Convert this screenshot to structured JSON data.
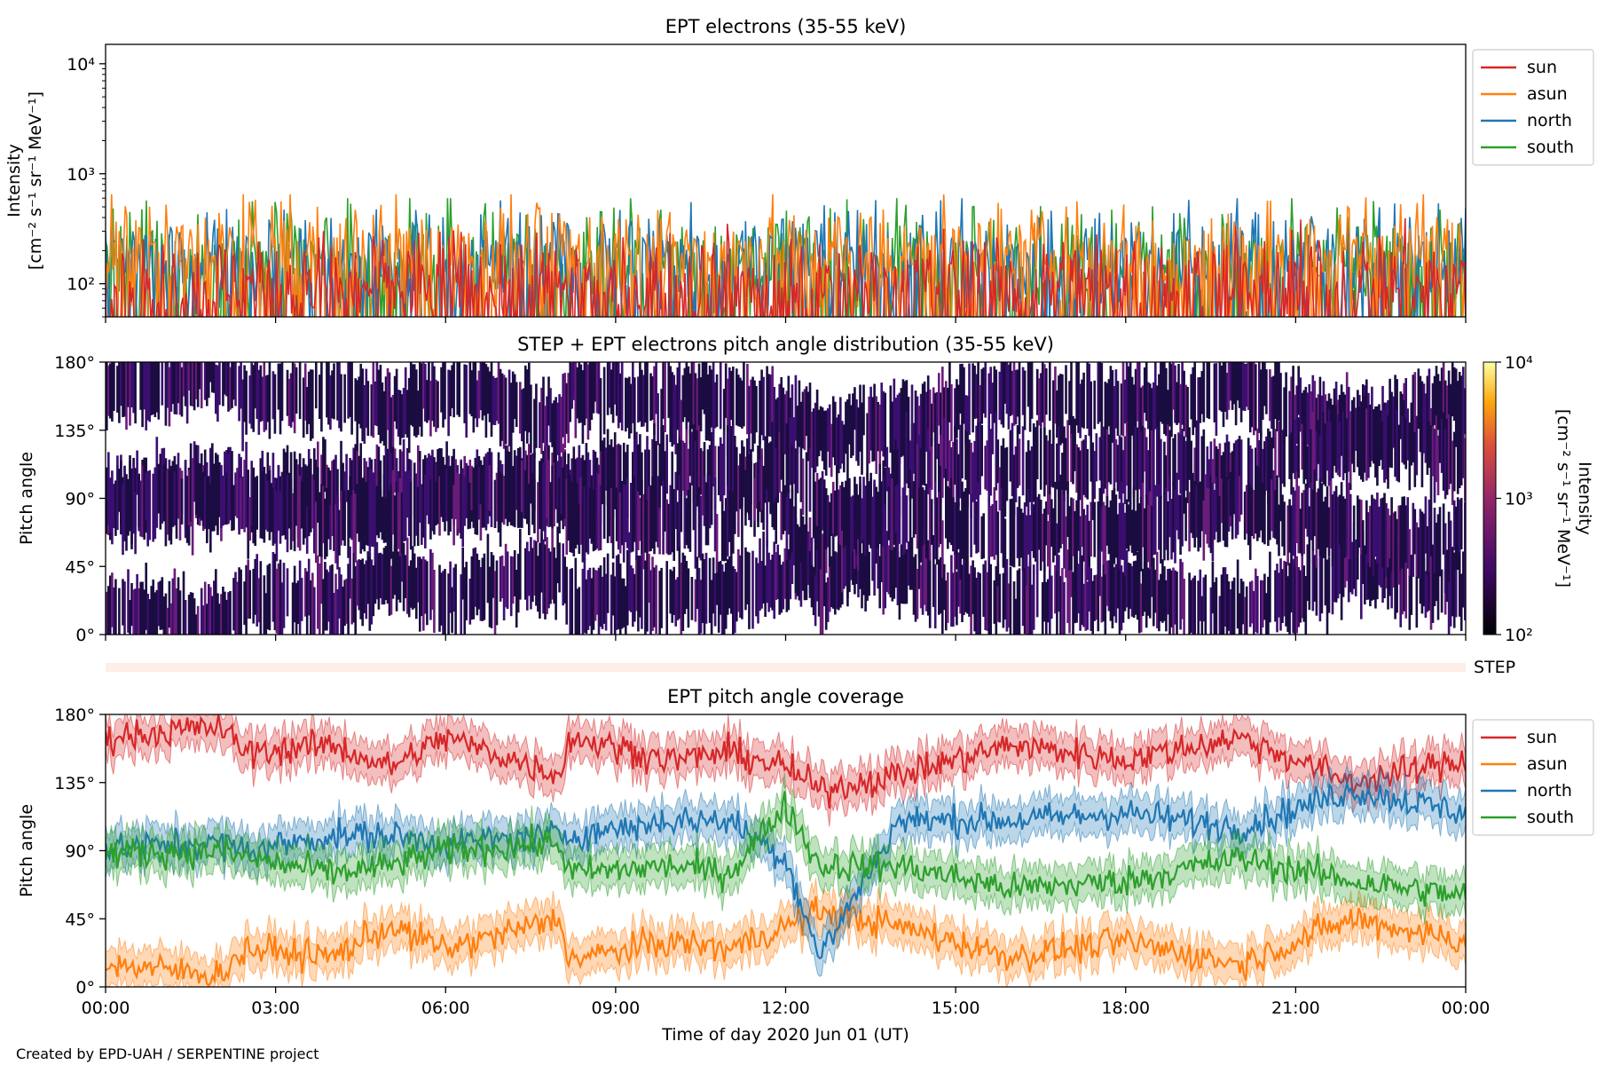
{
  "footer": "Created by EPD-UAH / SERPENTINE project",
  "colors": {
    "sun": "#d62728",
    "asun": "#ff7f0e",
    "north": "#1f77b4",
    "south": "#2ca02c"
  },
  "chart_data": [
    {
      "id": "intensity",
      "type": "line",
      "title": "EPT electrons (35-55 keV)",
      "ylabel_line1": "Intensity",
      "ylabel_line2": "[cm⁻² s⁻¹ sr⁻¹ MeV⁻¹]",
      "yscale": "log",
      "ylim": [
        50,
        15000
      ],
      "yticks": [
        "10²",
        "10³",
        "10⁴"
      ],
      "xlim": [
        "2020-06-01 00:00",
        "2020-06-02 00:00"
      ],
      "legend_position": "outside-right",
      "series": [
        {
          "name": "sun",
          "typical": 100,
          "max": 400
        },
        {
          "name": "asun",
          "typical": 200,
          "max": 650
        },
        {
          "name": "north",
          "typical": 180,
          "max": 600
        },
        {
          "name": "south",
          "typical": 170,
          "max": 600
        }
      ]
    },
    {
      "id": "pad",
      "type": "heatmap",
      "title": "STEP + EPT electrons pitch angle distribution (35-55 keV)",
      "ylabel": "Pitch angle",
      "ylim": [
        0,
        180
      ],
      "yticks": [
        "0°",
        "45°",
        "90°",
        "135°",
        "180°"
      ],
      "colorbar": {
        "label": "Intensity",
        "units": "[cm⁻² s⁻¹ sr⁻¹ MeV⁻¹]",
        "scale": "log",
        "range": [
          100,
          10000
        ],
        "ticks": [
          "10²",
          "10³",
          "10⁴"
        ]
      }
    },
    {
      "id": "step",
      "type": "bar",
      "label": "STEP"
    },
    {
      "id": "coverage",
      "type": "line",
      "title": "EPT pitch angle coverage",
      "ylabel": "Pitch angle",
      "xlabel": "Time of day 2020 Jun 01 (UT)",
      "ylim": [
        0,
        180
      ],
      "yticks": [
        "0°",
        "45°",
        "90°",
        "135°",
        "180°"
      ],
      "xticks": [
        "00:00",
        "03:00",
        "06:00",
        "09:00",
        "12:00",
        "15:00",
        "18:00",
        "21:00",
        "00:00"
      ],
      "legend_position": "outside-right",
      "band_halfwidth": 12,
      "x_hours": [
        0,
        2,
        2.5,
        4,
        5,
        6,
        8,
        8.2,
        10,
        11,
        12,
        12.6,
        14,
        16,
        18,
        20,
        22,
        24
      ],
      "series": [
        {
          "name": "sun",
          "values": [
            165,
            172,
            155,
            160,
            145,
            165,
            140,
            165,
            150,
            155,
            145,
            130,
            140,
            160,
            150,
            165,
            135,
            150
          ]
        },
        {
          "name": "asun",
          "values": [
            15,
            8,
            25,
            20,
            40,
            25,
            45,
            18,
            30,
            25,
            40,
            50,
            40,
            20,
            30,
            15,
            45,
            30
          ]
        },
        {
          "name": "north",
          "values": [
            92,
            95,
            90,
            100,
            100,
            95,
            100,
            100,
            110,
            110,
            85,
            20,
            110,
            110,
            115,
            105,
            130,
            115
          ]
        },
        {
          "name": "south",
          "values": [
            88,
            90,
            85,
            75,
            80,
            90,
            95,
            75,
            80,
            75,
            120,
            80,
            80,
            65,
            70,
            85,
            70,
            60
          ]
        }
      ]
    }
  ]
}
